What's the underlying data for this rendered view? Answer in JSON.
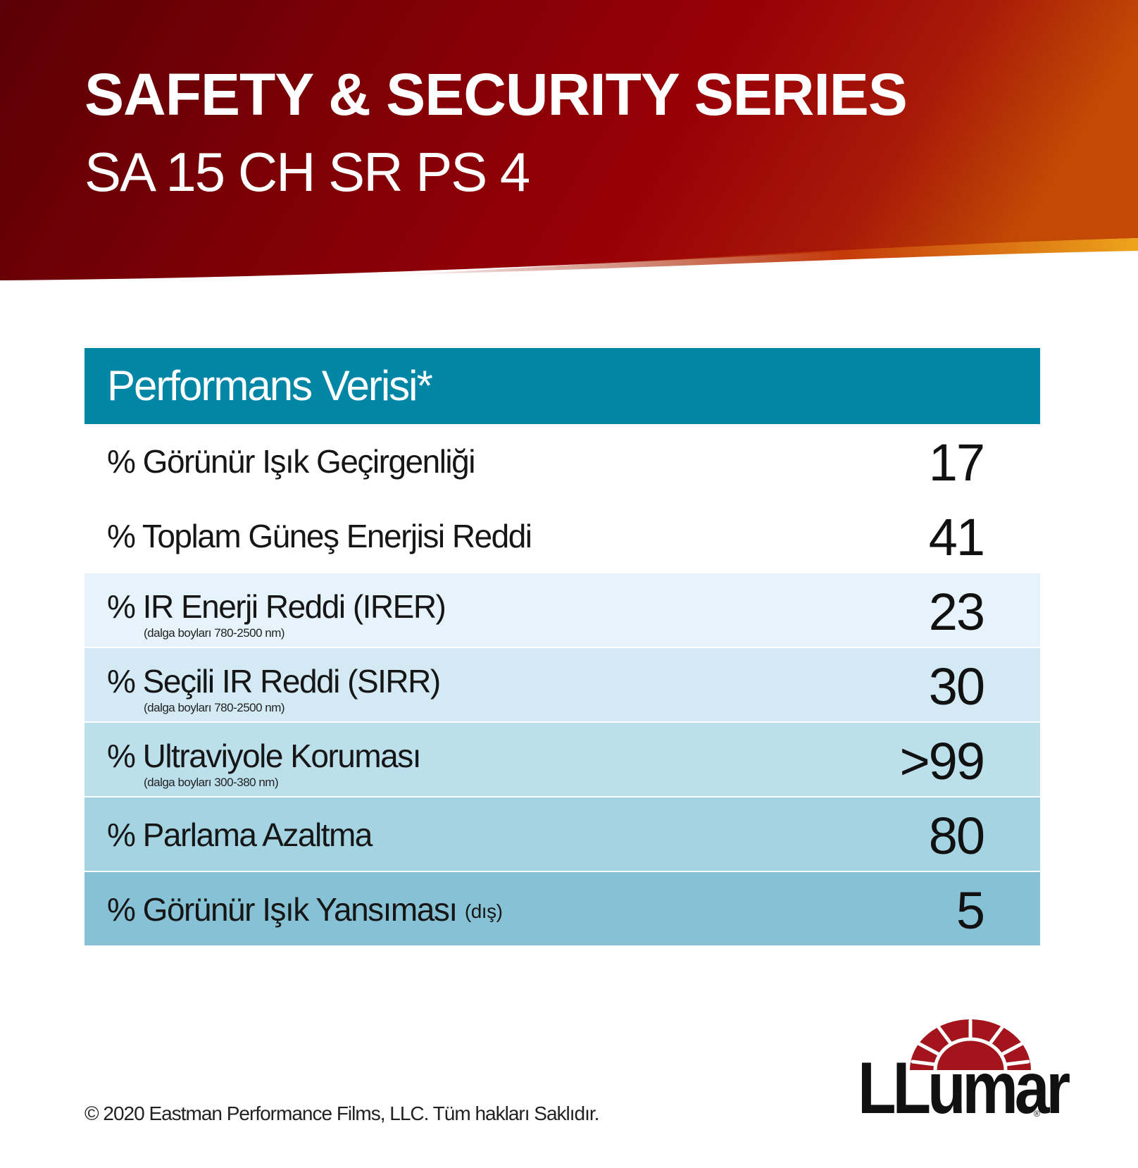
{
  "header": {
    "title": "SAFETY & SECURITY SERIES",
    "subtitle": "SA 15 CH SR PS 4"
  },
  "table": {
    "heading": "Performans Verisi*",
    "rows": [
      {
        "label": "% Görünür Işık Geçirgenliği",
        "note": "",
        "suffix": "",
        "value": "17",
        "bg": "#ffffff"
      },
      {
        "label": "% Toplam Güneş Enerjisi Reddi",
        "note": "",
        "suffix": "",
        "value": "41",
        "bg": "#ffffff"
      },
      {
        "label": "% IR Enerji Reddi (IRER)",
        "note": "(dalga boyları 780-2500 nm)",
        "suffix": "",
        "value": "23",
        "bg": "#e6f3fa"
      },
      {
        "label": "% Seçili IR Reddi (SIRR)",
        "note": "(dalga boyları 780-2500 nm)",
        "suffix": "",
        "value": "30",
        "bg": "#d3e9f4"
      },
      {
        "label": "% Ultraviyole Koruması",
        "note": "(dalga boyları 300-380 nm)",
        "suffix": "",
        "value": ">99",
        "bg": "#bcdfec"
      },
      {
        "label": "% Parlama Azaltma",
        "note": "",
        "suffix": "",
        "value": "80",
        "bg": "#a4d3e2"
      },
      {
        "label": "% Görünür Işık Yansıması",
        "note": "",
        "suffix": "(dış)",
        "value": "5",
        "bg": "#86c1d6"
      }
    ]
  },
  "footer": {
    "copyright": "© 2020 Eastman Performance Films, LLC. Tüm hakları Saklıdır.",
    "logo_text": "LLumar",
    "logo_registered": "®"
  },
  "colors": {
    "banner_dark": "#5a0006",
    "banner_mid": "#9a0008",
    "banner_orange": "#c24a05",
    "banner_gold": "#e8a11f",
    "table_header": "#0186a6",
    "logo_red": "#a3141c"
  }
}
